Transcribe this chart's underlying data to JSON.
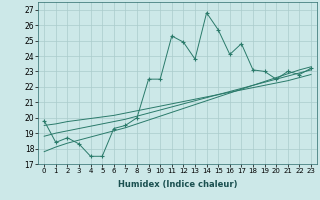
{
  "xlabel": "Humidex (Indice chaleur)",
  "bg_color": "#cce8e8",
  "grid_color": "#aacccc",
  "line_color": "#2a7a6a",
  "xlim": [
    -0.5,
    23.5
  ],
  "ylim": [
    17,
    27.5
  ],
  "yticks": [
    17,
    18,
    19,
    20,
    21,
    22,
    23,
    24,
    25,
    26,
    27
  ],
  "xticks": [
    0,
    1,
    2,
    3,
    4,
    5,
    6,
    7,
    8,
    9,
    10,
    11,
    12,
    13,
    14,
    15,
    16,
    17,
    18,
    19,
    20,
    21,
    22,
    23
  ],
  "series_main": [
    19.8,
    18.4,
    18.7,
    18.3,
    17.5,
    17.5,
    19.3,
    19.5,
    20.0,
    22.5,
    22.5,
    25.3,
    24.9,
    23.8,
    26.8,
    25.7,
    24.1,
    24.8,
    23.1,
    23.0,
    22.5,
    23.0,
    22.8,
    23.2
  ],
  "series_line1": [
    19.5,
    19.6,
    19.75,
    19.85,
    19.95,
    20.05,
    20.15,
    20.3,
    20.45,
    20.6,
    20.75,
    20.9,
    21.05,
    21.2,
    21.35,
    21.5,
    21.65,
    21.8,
    21.95,
    22.1,
    22.25,
    22.4,
    22.6,
    22.8
  ],
  "series_line2": [
    18.8,
    19.0,
    19.15,
    19.3,
    19.45,
    19.6,
    19.75,
    19.9,
    20.1,
    20.3,
    20.5,
    20.7,
    20.9,
    21.1,
    21.3,
    21.5,
    21.7,
    21.9,
    22.1,
    22.3,
    22.5,
    22.7,
    22.9,
    23.1
  ],
  "series_line3": [
    17.8,
    18.1,
    18.35,
    18.55,
    18.75,
    18.95,
    19.15,
    19.35,
    19.6,
    19.85,
    20.1,
    20.35,
    20.6,
    20.85,
    21.1,
    21.35,
    21.6,
    21.85,
    22.1,
    22.35,
    22.6,
    22.85,
    23.1,
    23.3
  ]
}
